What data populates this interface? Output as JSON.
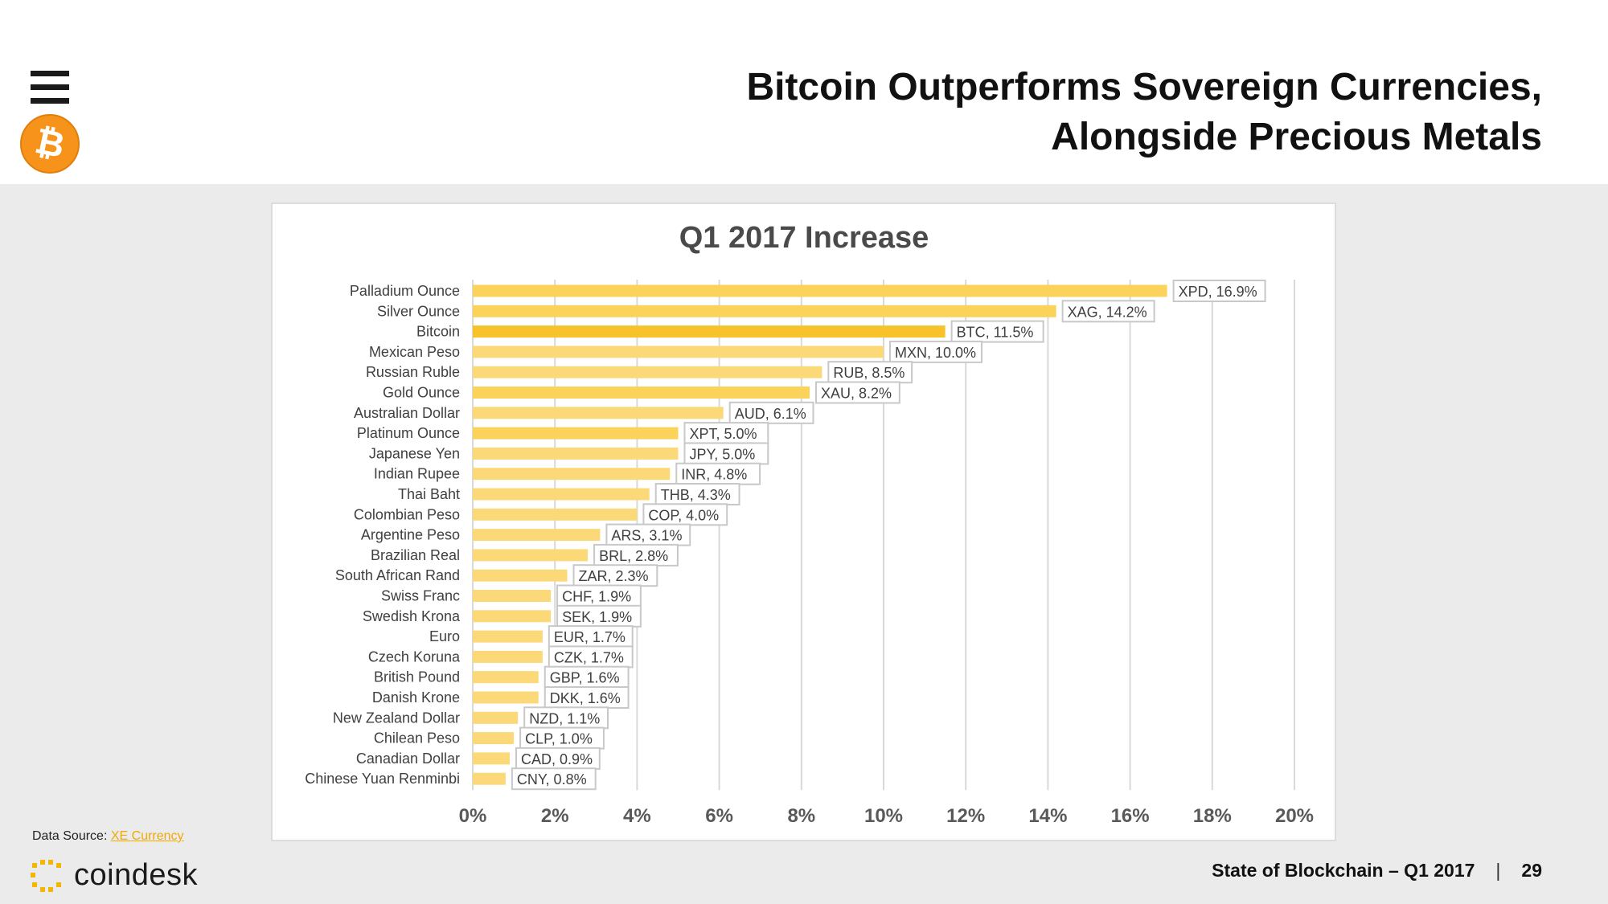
{
  "title": {
    "line1": "Bitcoin Outperforms Sovereign Currencies,",
    "line2": "Alongside Precious Metals"
  },
  "logo": {
    "symbol": "₿",
    "icon": "bitcoin-icon"
  },
  "source": {
    "label": "Data Source:",
    "link_text": "XE Currency"
  },
  "brand": {
    "name": "coindesk",
    "icon": "coindesk-icon"
  },
  "footer": {
    "report": "State of Blockchain – Q1 2017",
    "page": "29"
  },
  "colors": {
    "bar": "#fcd978",
    "bar_highlight": "#f8c22a",
    "grid": "#d9d9d9",
    "label_border": "#c8c8c8"
  },
  "chart_data": {
    "type": "bar",
    "orientation": "horizontal",
    "title": "Q1 2017 Increase",
    "xlabel": "",
    "ylabel": "",
    "xlim": [
      0,
      20
    ],
    "x_ticks": [
      "0%",
      "2%",
      "4%",
      "6%",
      "8%",
      "10%",
      "12%",
      "14%",
      "16%",
      "18%",
      "20%"
    ],
    "grid": true,
    "categories": [
      "Palladium Ounce",
      "Silver Ounce",
      "Bitcoin",
      "Mexican Peso",
      "Russian Ruble",
      "Gold Ounce",
      "Australian Dollar",
      "Platinum Ounce",
      "Japanese Yen",
      "Indian Rupee",
      "Thai Baht",
      "Colombian Peso",
      "Argentine Peso",
      "Brazilian Real",
      "South African Rand",
      "Swiss Franc",
      "Swedish Krona",
      "Euro",
      "Czech Koruna",
      "British Pound",
      "Danish Krone",
      "New Zealand Dollar",
      "Chilean Peso",
      "Canadian Dollar",
      "Chinese Yuan Renminbi"
    ],
    "values": [
      16.9,
      14.2,
      11.5,
      10.0,
      8.5,
      8.2,
      6.1,
      5.0,
      5.0,
      4.8,
      4.3,
      4.0,
      3.1,
      2.8,
      2.3,
      1.9,
      1.9,
      1.7,
      1.7,
      1.6,
      1.6,
      1.1,
      1.0,
      0.9,
      0.8
    ],
    "data_labels": [
      "XPD, 16.9%",
      "XAG, 14.2%",
      "BTC, 11.5%",
      "MXN, 10.0%",
      "RUB, 8.5%",
      "XAU, 8.2%",
      "AUD, 6.1%",
      "XPT, 5.0%",
      "JPY, 5.0%",
      "INR, 4.8%",
      "THB, 4.3%",
      "COP, 4.0%",
      "ARS, 3.1%",
      "BRL, 2.8%",
      "ZAR, 2.3%",
      "CHF, 1.9%",
      "SEK, 1.9%",
      "EUR, 1.7%",
      "CZK, 1.7%",
      "GBP, 1.6%",
      "DKK, 1.6%",
      "NZD, 1.1%",
      "CLP, 1.0%",
      "CAD, 0.9%",
      "CNY, 0.8%"
    ],
    "bar_tones": [
      "medium",
      "medium",
      "dark",
      "light",
      "light",
      "medium",
      "light",
      "medium",
      "light",
      "light",
      "light",
      "light",
      "light",
      "light",
      "light",
      "light",
      "light",
      "light",
      "light",
      "light",
      "light",
      "light",
      "light",
      "light",
      "light"
    ]
  }
}
